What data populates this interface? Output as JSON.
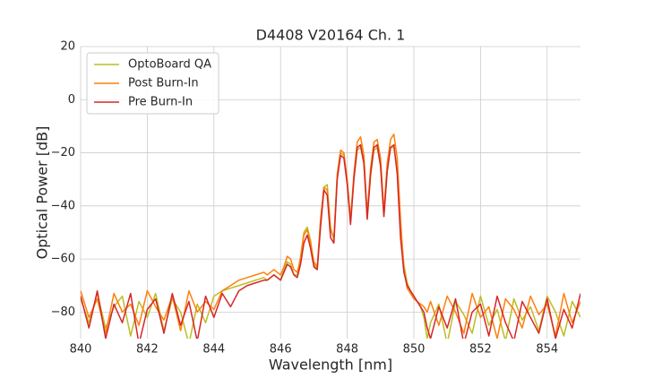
{
  "chart_data": {
    "type": "line",
    "title": "D4408 V20164 Ch. 1",
    "x_label": "Wavelength [nm]",
    "y_label": "Optical Power [dB]",
    "x": [
      840,
      840.25,
      840.5,
      840.75,
      841,
      841.25,
      841.5,
      841.75,
      842,
      842.25,
      842.5,
      842.75,
      843,
      843.25,
      843.5,
      843.75,
      844,
      844.25,
      844.5,
      844.75,
      845,
      845.25,
      845.5,
      845.6,
      845.7,
      845.8,
      845.9,
      846.0,
      846.1,
      846.2,
      846.3,
      846.4,
      846.5,
      846.6,
      846.7,
      846.8,
      846.9,
      847.0,
      847.1,
      847.2,
      847.3,
      847.4,
      847.5,
      847.6,
      847.7,
      847.8,
      847.9,
      848.0,
      848.1,
      848.2,
      848.3,
      848.4,
      848.5,
      848.6,
      848.7,
      848.8,
      848.9,
      849.0,
      849.1,
      849.2,
      849.3,
      849.4,
      849.5,
      849.6,
      849.7,
      849.8,
      849.9,
      850.0,
      850.1,
      850.2,
      850.3,
      850.4,
      850.5,
      850.75,
      851,
      851.25,
      851.5,
      851.75,
      852,
      852.25,
      852.5,
      852.75,
      853,
      853.25,
      853.5,
      853.75,
      854,
      854.25,
      854.5,
      854.75,
      855
    ],
    "series": [
      {
        "name": "OptoBoard QA",
        "color": "#bcbd22",
        "values": [
          -75,
          -84,
          -73,
          -86,
          -78,
          -74,
          -89,
          -76,
          -82,
          -73,
          -87,
          -75,
          -80,
          -92,
          -77,
          -84,
          -74,
          -72,
          -71,
          -70,
          -69,
          -68,
          -67,
          -68,
          -67,
          -66,
          -67,
          -68,
          -64,
          -61,
          -62,
          -66,
          -66,
          -59,
          -50,
          -48,
          -53,
          -62,
          -64,
          -46,
          -33,
          -32,
          -48,
          -53,
          -29,
          -20,
          -21,
          -31,
          -46,
          -30,
          -19,
          -18,
          -24,
          -45,
          -29,
          -19,
          -18,
          -25,
          -44,
          -27,
          -18,
          -18,
          -26,
          -48,
          -62,
          -69,
          -72,
          -74,
          -76,
          -78,
          -82,
          -90,
          -84,
          -77,
          -92,
          -76,
          -81,
          -88,
          -74,
          -85,
          -79,
          -91,
          -75,
          -83,
          -78,
          -87,
          -74,
          -80,
          -89,
          -76,
          -82
        ]
      },
      {
        "name": "Post Burn-In",
        "color": "#ff7f0e",
        "values": [
          -72,
          -82,
          -75,
          -88,
          -73,
          -80,
          -77,
          -85,
          -72,
          -78,
          -83,
          -74,
          -87,
          -72,
          -80,
          -76,
          -79,
          -72,
          -70,
          -68,
          -67,
          -66,
          -65,
          -66,
          -65,
          -64,
          -65,
          -66,
          -63,
          -59,
          -60,
          -64,
          -65,
          -60,
          -51,
          -49,
          -54,
          -61,
          -63,
          -45,
          -33,
          -34,
          -49,
          -52,
          -28,
          -19,
          -20,
          -30,
          -45,
          -28,
          -16,
          -14,
          -21,
          -43,
          -26,
          -16,
          -15,
          -22,
          -42,
          -24,
          -15,
          -13,
          -22,
          -45,
          -64,
          -71,
          -73,
          -75,
          -76,
          -77,
          -78,
          -80,
          -76,
          -85,
          -74,
          -80,
          -88,
          -73,
          -82,
          -78,
          -90,
          -75,
          -79,
          -86,
          -74,
          -81,
          -77,
          -89,
          -73,
          -84,
          -76
        ]
      },
      {
        "name": "Pre Burn-In",
        "color": "#d62728",
        "values": [
          -74,
          -86,
          -72,
          -90,
          -77,
          -84,
          -73,
          -92,
          -79,
          -75,
          -88,
          -73,
          -85,
          -76,
          -91,
          -74,
          -82,
          -73,
          -78,
          -72,
          -70,
          -69,
          -68,
          -68,
          -67,
          -66,
          -67,
          -68,
          -65,
          -62,
          -63,
          -66,
          -67,
          -62,
          -54,
          -51,
          -56,
          -63,
          -64,
          -48,
          -34,
          -36,
          -52,
          -54,
          -30,
          -21,
          -22,
          -32,
          -47,
          -30,
          -18,
          -17,
          -24,
          -45,
          -28,
          -18,
          -17,
          -25,
          -44,
          -27,
          -18,
          -17,
          -28,
          -52,
          -65,
          -70,
          -72,
          -74,
          -76,
          -78,
          -80,
          -86,
          -90,
          -78,
          -86,
          -75,
          -92,
          -80,
          -77,
          -89,
          -74,
          -84,
          -91,
          -76,
          -82,
          -88,
          -75,
          -90,
          -79,
          -86,
          -73
        ]
      }
    ],
    "xlim": [
      840,
      855
    ],
    "xticks": [
      840,
      842,
      844,
      846,
      848,
      850,
      852,
      854
    ],
    "ylim": [
      -90,
      20
    ],
    "yticks": [
      {
        "value": -80,
        "label": "−80"
      },
      {
        "value": -60,
        "label": "−60"
      },
      {
        "value": -40,
        "label": "−40"
      },
      {
        "value": -20,
        "label": "−20"
      },
      0,
      20
    ],
    "grid": true,
    "legend": "upper left"
  }
}
